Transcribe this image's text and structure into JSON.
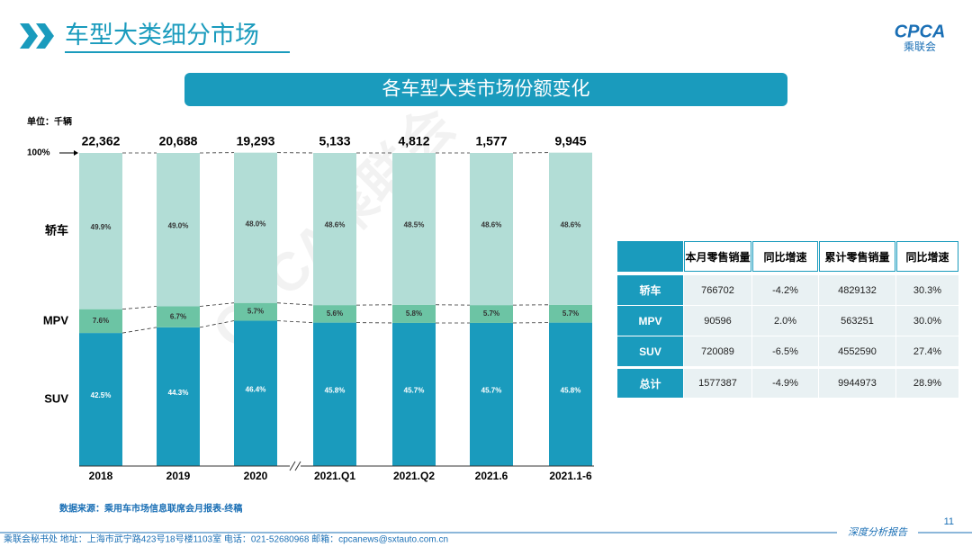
{
  "header": {
    "title": "车型大类细分市场",
    "logo_text": "CPCA",
    "logo_subtext": "乘联会"
  },
  "chart_data": {
    "type": "stacked_bar",
    "title": "各车型大类市场份额变化",
    "unit": "单位：千辆",
    "categories": [
      "2018",
      "2019",
      "2020",
      "2021.Q1",
      "2021.Q2",
      "2021.6",
      "2021.1-6"
    ],
    "series": [
      {
        "name": "SUV",
        "color": "#1a9bbd",
        "values": [
          42.5,
          44.3,
          46.4,
          45.8,
          45.7,
          45.7,
          45.8
        ],
        "value_labels": [
          "42.5%",
          "44.3%",
          "46.4%",
          "45.8%",
          "45.7%",
          "45.7%",
          "45.8%"
        ]
      },
      {
        "name": "MPV",
        "color": "#6cc4a4",
        "values": [
          7.6,
          6.7,
          5.7,
          5.6,
          5.8,
          5.7,
          5.7
        ],
        "value_labels": [
          "7.6%",
          "6.7%",
          "5.7%",
          "5.6%",
          "5.8%",
          "5.7%",
          "5.7%"
        ]
      },
      {
        "name": "轿车",
        "color": "#b2ddd6",
        "values": [
          49.9,
          49.0,
          48.0,
          48.6,
          48.5,
          48.6,
          48.6
        ],
        "value_labels": [
          "49.9%",
          "49.0%",
          "48.0%",
          "48.6%",
          "48.5%",
          "48.6%",
          "48.6%"
        ]
      }
    ],
    "totals": {
      "values": [
        22362,
        20688,
        19293,
        5133,
        4812,
        1577,
        9945
      ],
      "value_labels": [
        "22,362",
        "20,688",
        "19,293",
        "5,133",
        "4,812",
        "1,577",
        "9,945"
      ]
    },
    "ylim": [
      0,
      100
    ],
    "yticks": [
      {
        "value": 100,
        "label": "100%"
      }
    ]
  },
  "table": {
    "header": [
      "本月零售销量",
      "同比增速",
      "累计零售销量",
      "同比增速"
    ],
    "rows": [
      [
        "轿车",
        "766702",
        "-4.2%",
        "4829132",
        "30.3%"
      ],
      [
        "MPV",
        "90596",
        "2.0%",
        "563251",
        "30.0%"
      ],
      [
        "SUV",
        "720089",
        "-6.5%",
        "4552590",
        "27.4%"
      ],
      [
        "总计",
        "1577387",
        "-4.9%",
        "9944973",
        "28.9%"
      ]
    ]
  },
  "watermark": "CPCA乘联会",
  "source": "数据来源：乘用车市场信息联席会月报表-终稿",
  "footer": {
    "contact": "乘联会秘书处   地址：上海市武宁路423号18号楼1103室   电话：021-52680968   邮箱：cpcanews@sxtauto.com.cn",
    "tag": "深度分析报告",
    "page": "11"
  }
}
